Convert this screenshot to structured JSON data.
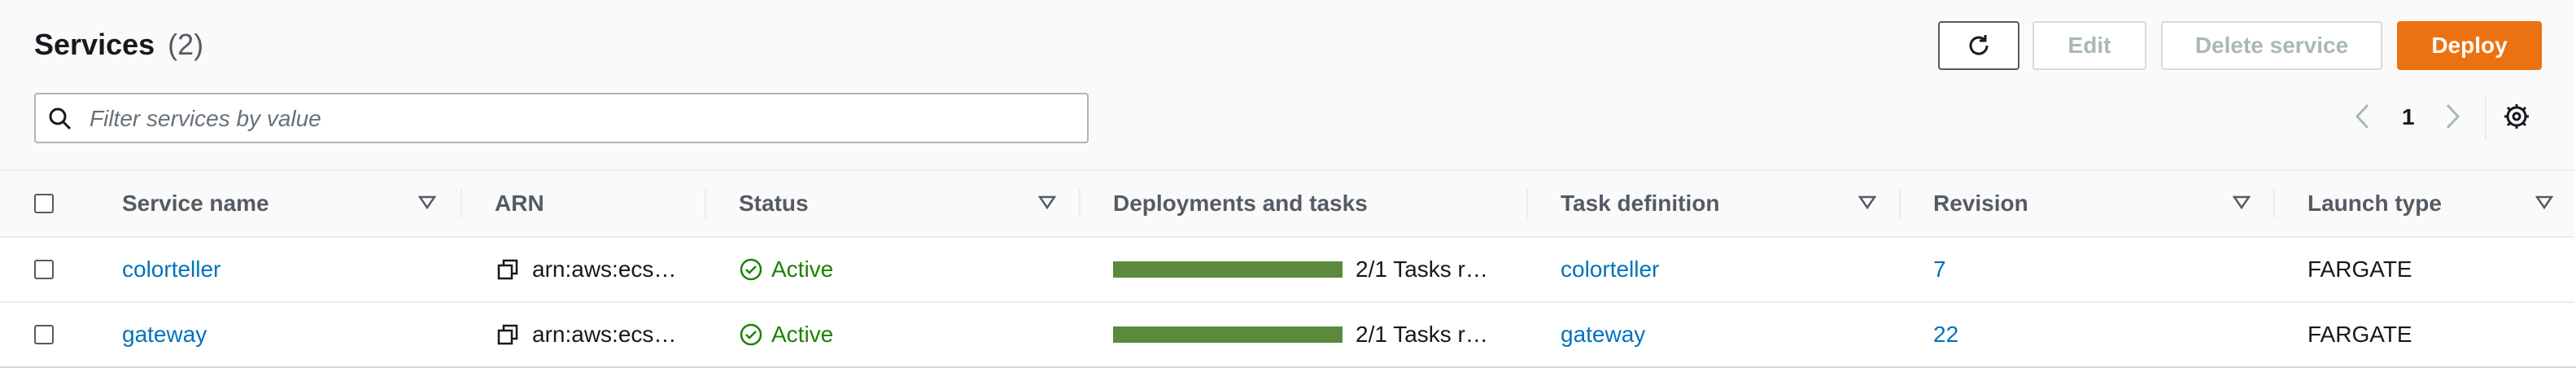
{
  "header": {
    "title": "Services",
    "count": "(2)",
    "edit_label": "Edit",
    "delete_label": "Delete service",
    "deploy_label": "Deploy"
  },
  "filter": {
    "placeholder": "Filter services by value"
  },
  "pagination": {
    "current_page": "1"
  },
  "table": {
    "columns": [
      "Service name",
      "ARN",
      "Status",
      "Deployments and tasks",
      "Task definition",
      "Revision",
      "Launch type"
    ],
    "rows": [
      {
        "service_name": "colorteller",
        "arn": "arn:aws:ecs…",
        "status": "Active",
        "tasks": "2/1 Tasks r…",
        "task_definition": "colorteller",
        "revision": "7",
        "launch_type": "FARGATE"
      },
      {
        "service_name": "gateway",
        "arn": "arn:aws:ecs…",
        "status": "Active",
        "tasks": "2/1 Tasks r…",
        "task_definition": "gateway",
        "revision": "22",
        "launch_type": "FARGATE"
      }
    ]
  },
  "colors": {
    "accent": "#ec7211",
    "link": "#0073bb",
    "success": "#1d8102",
    "progress": "#5b8a3c"
  },
  "icons": [
    "refresh-icon",
    "search-icon",
    "chevron-left-icon",
    "chevron-right-icon",
    "settings-gear-icon",
    "sort-caret-icon",
    "copy-icon",
    "check-circle-icon"
  ]
}
